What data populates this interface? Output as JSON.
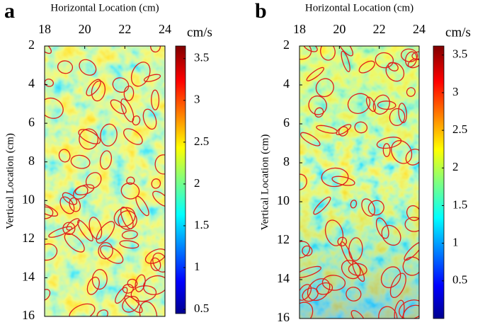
{
  "chart_data": [
    {
      "type": "heatmap",
      "panel_label": "a",
      "xlabel": "Horizontal Location (cm)",
      "ylabel": "Vertical Location (cm)",
      "x_axis_position": "top",
      "xlim": [
        18,
        24
      ],
      "xticks": [
        18,
        20,
        22,
        24
      ],
      "ylim": [
        2,
        16
      ],
      "y_inverted": true,
      "yticks": [
        2,
        4,
        6,
        8,
        10,
        12,
        14,
        16
      ],
      "colorbar": {
        "label": "cm/s",
        "colormap": "jet",
        "lim": [
          0.45,
          3.65
        ],
        "ticks": [
          0.5,
          1,
          1.5,
          2,
          2.5,
          3,
          3.5
        ]
      },
      "contour_color": "#e0201a"
    },
    {
      "type": "heatmap",
      "panel_label": "b",
      "xlabel": "Horizontal Location (cm)",
      "ylabel": "Vertical Location (cm)",
      "x_axis_position": "top",
      "xlim": [
        18,
        24
      ],
      "xticks": [
        18,
        20,
        22,
        24
      ],
      "ylim": [
        2,
        16
      ],
      "y_inverted": true,
      "yticks": [
        2,
        4,
        6,
        8,
        10,
        12,
        14,
        16
      ],
      "colorbar": {
        "label": "cm/s",
        "colormap": "jet",
        "lim": [
          0.0,
          3.62
        ],
        "ticks": [
          0.5,
          1,
          1.5,
          2,
          2.5,
          3,
          3.5
        ]
      },
      "contour_color": "#e0201a"
    }
  ]
}
